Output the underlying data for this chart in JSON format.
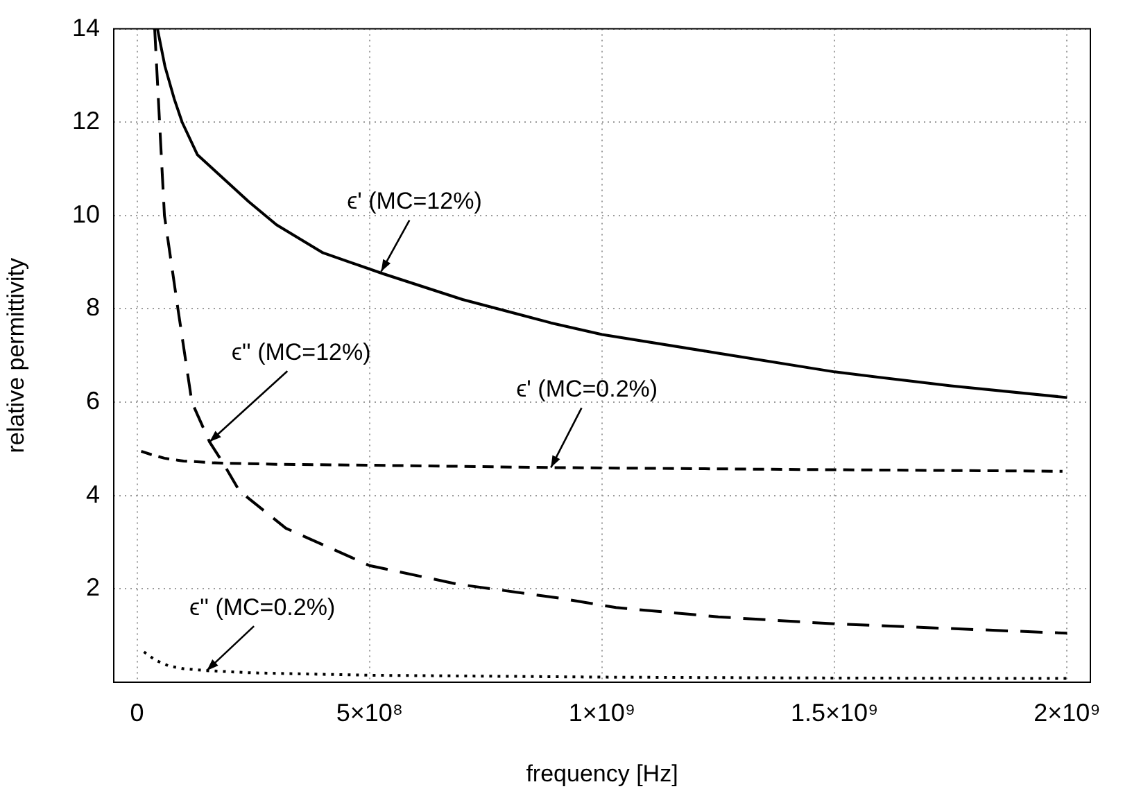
{
  "chart_data": {
    "type": "line",
    "xlabel": "frequency [Hz]",
    "ylabel": "relative permittivity",
    "xlim": [
      -50000000,
      2050000000
    ],
    "ylim": [
      0,
      14
    ],
    "xticks": [
      0,
      {
        "value": 500000000,
        "label": "5×10⁸"
      },
      {
        "value": 1000000000,
        "label": "1×10⁹"
      },
      {
        "value": 1500000000,
        "label": "1.5×10⁹"
      },
      {
        "value": 2000000000,
        "label": "2×10⁹"
      }
    ],
    "yticks": [
      2,
      4,
      6,
      8,
      10,
      12,
      14
    ],
    "grid": true,
    "legend": false,
    "marker": "none",
    "series": [
      {
        "color": "#000000",
        "line_style": "solid",
        "x": [
          44000000,
          60000000,
          80000000,
          97000000,
          130000000,
          185000000,
          240000000,
          300000000,
          400000000,
          530000000,
          700000000,
          890000000,
          1000000000,
          1250000000,
          1500000000,
          1750000000,
          2000000000
        ],
        "values": [
          14,
          13.2,
          12.5,
          12,
          11.3,
          10.8,
          10.3,
          9.8,
          9.2,
          8.75,
          8.2,
          7.7,
          7.45,
          7.05,
          6.65,
          6.35,
          6.1
        ]
      },
      {
        "color": "#000000",
        "line_style": "dashed",
        "x": [
          38000000,
          59000000,
          88000000,
          118000000,
          156000000,
          185000000,
          220000000,
          320000000,
          500000000,
          690000000,
          910000000,
          1030000000,
          1250000000,
          1500000000,
          1750000000,
          2000000000
        ],
        "values": [
          14,
          10,
          8,
          6,
          5.15,
          4.7,
          4.1,
          3.3,
          2.5,
          2.1,
          1.8,
          1.6,
          1.4,
          1.25,
          1.15,
          1.05
        ]
      },
      {
        "color": "#000000",
        "line_style": "dashed",
        "x": [
          9000000,
          30000000,
          59000000,
          100000000,
          165000000,
          300000000,
          500000000,
          890000000,
          1400000000,
          1990000000
        ],
        "values": [
          4.95,
          4.88,
          4.8,
          4.74,
          4.7,
          4.67,
          4.65,
          4.6,
          4.56,
          4.52
        ]
      },
      {
        "color": "#000000",
        "line_style": "dotted",
        "x": [
          15000000,
          40000000,
          68000000,
          100000000,
          147000000,
          250000000,
          500000000,
          1000000000,
          1500000000,
          2000000000
        ],
        "values": [
          0.65,
          0.47,
          0.35,
          0.29,
          0.25,
          0.2,
          0.15,
          0.11,
          0.09,
          0.08
        ]
      }
    ],
    "annotations": [
      {
        "text": "ϵ' (MC=12%)",
        "x": 525000000,
        "y": 8.8
      },
      {
        "text": "ϵ'' (MC=12%)",
        "x": 156000000,
        "y": 5.15
      },
      {
        "text": "ϵ' (MC=0.2%)",
        "x": 890000000,
        "y": 4.6
      },
      {
        "text": "ϵ'' (MC=0.2%)",
        "x": 150000000,
        "y": 0.25
      }
    ]
  }
}
